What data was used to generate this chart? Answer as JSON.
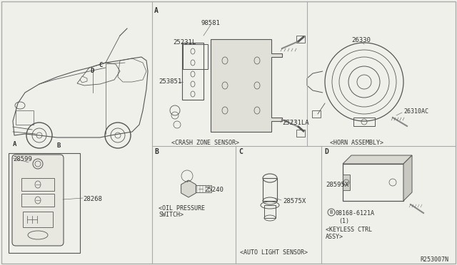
{
  "bg_color": "#f0f0eb",
  "line_color": "#555555",
  "text_color": "#333333",
  "part_numbers": {
    "crash_zone_top": "98581",
    "crash_zone_left": "25231L",
    "crash_zone_mid": "253851",
    "crash_zone_right": "25231LA",
    "horn_top": "26330",
    "horn_screw": "26310AC",
    "key_top": "28599",
    "key_body": "28268",
    "oil_switch": "25240",
    "light_sensor": "28575X",
    "keyless_ctrl": "28595X",
    "keyless_screw": "08168-6121A",
    "keyless_note": "(1)",
    "ref": "R253007N"
  },
  "labels": {
    "section_a_top": "A",
    "crash_zone": "<CRASH ZONE SENSOR>",
    "horn": "<HORN ASSEMBLY>",
    "section_b": "B",
    "section_c": "C",
    "section_d": "D",
    "car_a": "A",
    "car_b": "B",
    "car_c": "C",
    "car_d": "D",
    "oil_switch_line1": "<OIL PRESSURE",
    "oil_switch_line2": "SWITCH>",
    "auto_light": "<AUTO LIGHT SENSOR>",
    "keyless_line1": "<KEYLESS CTRL",
    "keyless_line2": "ASSY>"
  },
  "divider_color": "#aaaaaa",
  "lw": 0.7
}
